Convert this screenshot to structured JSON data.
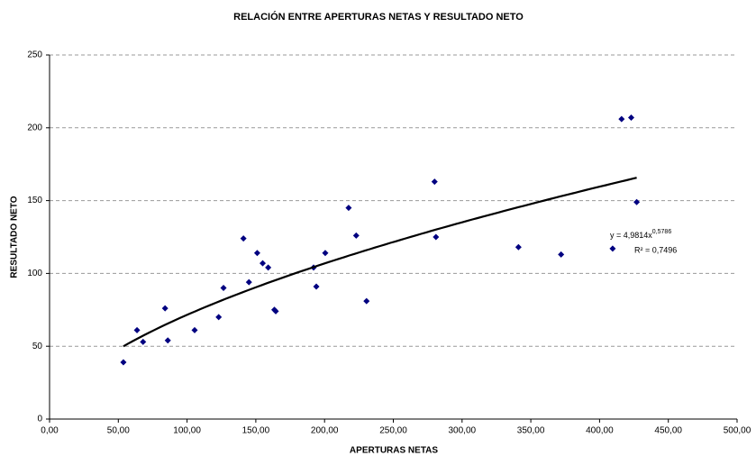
{
  "chart_data": {
    "type": "scatter",
    "title": "RELACIÓN ENTRE APERTURAS NETAS Y RESULTADO NETO",
    "xlabel": "APERTURAS NETAS",
    "ylabel": "RESULTADO NETO",
    "x": [
      53.7,
      63.6,
      68,
      84,
      86,
      105.5,
      123,
      126.5,
      141,
      145,
      151,
      155,
      159,
      163.5,
      164.5,
      192,
      194,
      200.5,
      217.5,
      223,
      230.5,
      280,
      281,
      341,
      372,
      409.5,
      427,
      416,
      423
    ],
    "values": [
      39,
      61,
      53,
      76,
      54,
      61,
      70,
      90,
      124,
      94,
      114,
      107,
      104,
      75,
      74,
      104,
      91,
      114,
      145,
      126,
      81,
      163,
      125,
      118,
      113,
      117,
      149,
      206,
      207
    ],
    "color": "#000080",
    "xlim": [
      0,
      500
    ],
    "ylim": [
      0,
      250
    ],
    "xticks": [
      {
        "value": 0,
        "label": "0,00"
      },
      {
        "value": 50,
        "label": "50,00"
      },
      {
        "value": 100,
        "label": "100,00"
      },
      {
        "value": 150,
        "label": "150,00"
      },
      {
        "value": 200,
        "label": "200,00"
      },
      {
        "value": 250,
        "label": "250,00"
      },
      {
        "value": 300,
        "label": "300,00"
      },
      {
        "value": 350,
        "label": "350,00"
      },
      {
        "value": 400,
        "label": "400,00"
      },
      {
        "value": 450,
        "label": "450,00"
      },
      {
        "value": 500,
        "label": "500,00"
      }
    ],
    "yticks": [
      0,
      50,
      100,
      150,
      200,
      250
    ],
    "grid": true,
    "trendline": {
      "type": "power",
      "coefficients": [
        4.9814,
        0.5786
      ],
      "equation_label": "y = 4,9814x",
      "exponent_label": "0,5786",
      "r2_label": "R² = 0,7496",
      "color": "#000000"
    }
  }
}
